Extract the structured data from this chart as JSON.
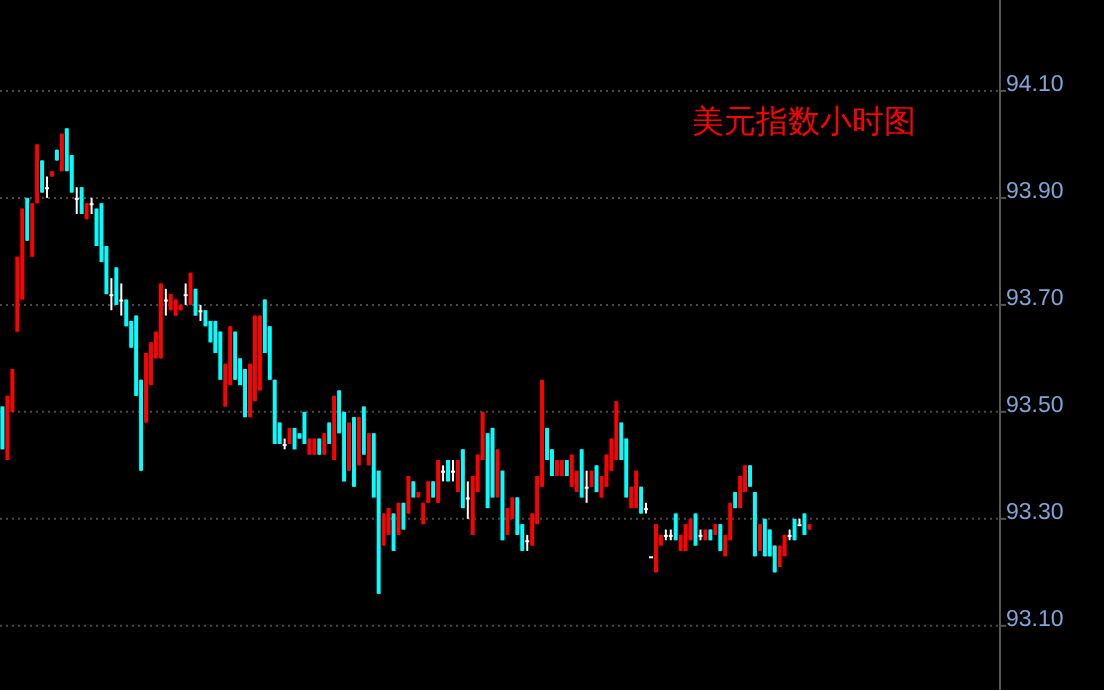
{
  "chart_data": {
    "type": "candlestick",
    "title": "美元指数小时图",
    "categories": [
      null,
      null,
      null,
      null,
      null,
      null,
      null,
      null,
      null,
      null,
      null,
      null,
      null,
      null,
      null,
      null,
      null,
      null,
      null,
      null,
      null,
      null,
      null,
      null,
      null,
      null,
      null,
      null,
      null,
      null,
      null,
      null,
      null,
      null,
      null,
      null,
      null,
      null,
      null,
      null,
      null,
      null,
      null,
      null,
      null,
      null,
      null,
      null,
      null,
      null,
      null,
      null,
      null,
      null,
      null,
      null,
      null,
      null,
      null,
      null,
      null,
      null,
      null,
      null,
      null,
      null,
      null,
      null,
      null,
      null,
      null,
      null,
      null,
      null,
      null,
      null,
      null,
      null,
      null,
      null,
      null,
      null,
      null,
      null,
      null,
      null,
      null,
      null,
      null,
      null,
      null,
      null,
      null,
      null,
      null,
      null,
      null,
      null,
      null,
      null,
      null,
      null,
      null,
      null,
      null,
      null,
      null,
      null,
      null,
      null,
      null,
      null,
      null,
      null,
      null,
      null,
      null,
      null,
      null,
      null,
      null,
      null,
      null,
      null,
      null,
      null,
      null,
      null,
      null,
      null,
      null,
      null,
      null,
      null,
      null,
      null,
      null,
      null,
      null,
      null,
      null,
      null,
      null,
      null,
      null,
      null,
      null,
      null,
      null,
      null,
      null,
      null,
      null,
      null,
      null,
      null,
      null,
      null,
      null,
      null,
      null,
      null,
      null,
      null,
      null,
      null,
      null,
      null,
      null,
      null,
      null,
      null,
      null,
      null,
      null,
      null,
      null,
      null,
      null,
      null,
      null,
      null,
      null,
      null,
      null,
      null,
      null,
      null,
      null,
      null,
      null,
      null,
      null,
      null,
      null,
      null,
      null,
      null,
      null,
      null,
      null,
      null
    ],
    "ohlc": [
      [
        93.51,
        93.51,
        93.43,
        93.43
      ],
      [
        93.41,
        93.53,
        93.41,
        93.53
      ],
      [
        93.5,
        93.58,
        93.5,
        93.58
      ],
      [
        93.65,
        93.79,
        93.65,
        93.79
      ],
      [
        93.71,
        93.88,
        93.71,
        93.88
      ],
      [
        93.9,
        93.9,
        93.82,
        93.82
      ],
      [
        93.79,
        93.89,
        93.79,
        93.89
      ],
      [
        93.89,
        94.0,
        93.89,
        94.0
      ],
      [
        93.97,
        93.97,
        93.91,
        93.91
      ],
      [
        93.92,
        93.94,
        93.9,
        93.92
      ],
      [
        93.94,
        93.95,
        93.94,
        93.95
      ],
      [
        93.99,
        93.99,
        93.97,
        93.97
      ],
      [
        93.95,
        94.02,
        93.95,
        94.02
      ],
      [
        94.03,
        94.03,
        93.95,
        93.95
      ],
      [
        93.98,
        93.98,
        93.91,
        93.91
      ],
      [
        93.9,
        93.92,
        93.87,
        93.9
      ],
      [
        93.92,
        93.92,
        93.87,
        93.87
      ],
      [
        93.86,
        93.89,
        93.86,
        93.89
      ],
      [
        93.89,
        93.9,
        93.87,
        93.89
      ],
      [
        93.88,
        93.88,
        93.81,
        93.81
      ],
      [
        93.89,
        93.89,
        93.78,
        93.78
      ],
      [
        93.81,
        93.81,
        93.72,
        93.72
      ],
      [
        93.72,
        93.75,
        93.69,
        93.72
      ],
      [
        93.77,
        93.77,
        93.7,
        93.7
      ],
      [
        93.71,
        93.74,
        93.68,
        93.71
      ],
      [
        93.71,
        93.71,
        93.66,
        93.66
      ],
      [
        93.67,
        93.67,
        93.62,
        93.62
      ],
      [
        93.68,
        93.68,
        93.53,
        93.53
      ],
      [
        93.56,
        93.56,
        93.39,
        93.39
      ],
      [
        93.48,
        93.61,
        93.48,
        93.61
      ],
      [
        93.55,
        93.63,
        93.55,
        93.63
      ],
      [
        93.6,
        93.65,
        93.6,
        93.65
      ],
      [
        93.6,
        93.74,
        93.6,
        93.74
      ],
      [
        93.71,
        93.73,
        93.68,
        93.71
      ],
      [
        93.69,
        93.72,
        93.69,
        93.72
      ],
      [
        93.68,
        93.71,
        93.68,
        93.71
      ],
      [
        93.69,
        93.7,
        93.69,
        93.7
      ],
      [
        93.72,
        93.74,
        93.7,
        93.72
      ],
      [
        93.7,
        93.76,
        93.7,
        93.76
      ],
      [
        93.73,
        93.73,
        93.68,
        93.68
      ],
      [
        93.69,
        93.7,
        93.67,
        93.69
      ],
      [
        93.69,
        93.69,
        93.66,
        93.66
      ],
      [
        93.67,
        93.67,
        93.63,
        93.63
      ],
      [
        93.67,
        93.67,
        93.61,
        93.61
      ],
      [
        93.65,
        93.65,
        93.56,
        93.56
      ],
      [
        93.51,
        93.59,
        93.51,
        93.59
      ],
      [
        93.55,
        93.66,
        93.55,
        93.66
      ],
      [
        93.65,
        93.65,
        93.56,
        93.56
      ],
      [
        93.6,
        93.6,
        93.55,
        93.55
      ],
      [
        93.58,
        93.58,
        93.49,
        93.49
      ],
      [
        93.49,
        93.59,
        93.49,
        93.59
      ],
      [
        93.52,
        93.68,
        93.52,
        93.68
      ],
      [
        93.54,
        93.68,
        93.54,
        93.68
      ],
      [
        93.71,
        93.71,
        93.61,
        93.61
      ],
      [
        93.66,
        93.66,
        93.56,
        93.56
      ],
      [
        93.56,
        93.56,
        93.44,
        93.44
      ],
      [
        93.48,
        93.48,
        93.44,
        93.44
      ],
      [
        93.44,
        93.45,
        93.43,
        93.44
      ],
      [
        93.44,
        93.47,
        93.44,
        93.47
      ],
      [
        93.47,
        93.47,
        93.43,
        93.43
      ],
      [
        93.46,
        93.46,
        93.45,
        93.45
      ],
      [
        93.5,
        93.5,
        93.44,
        93.44
      ],
      [
        93.42,
        93.45,
        93.42,
        93.45
      ],
      [
        93.42,
        93.45,
        93.42,
        93.45
      ],
      [
        93.45,
        93.45,
        93.42,
        93.42
      ],
      [
        93.42,
        93.46,
        93.42,
        93.46
      ],
      [
        93.48,
        93.48,
        93.44,
        93.44
      ],
      [
        93.41,
        93.53,
        93.41,
        93.53
      ],
      [
        93.54,
        93.54,
        93.46,
        93.46
      ],
      [
        93.5,
        93.5,
        93.37,
        93.37
      ],
      [
        93.39,
        93.48,
        93.39,
        93.48
      ],
      [
        93.49,
        93.49,
        93.36,
        93.36
      ],
      [
        93.4,
        93.49,
        93.4,
        93.49
      ],
      [
        93.51,
        93.51,
        93.42,
        93.42
      ],
      [
        93.4,
        93.46,
        93.4,
        93.46
      ],
      [
        93.46,
        93.46,
        93.34,
        93.34
      ],
      [
        93.39,
        93.39,
        93.16,
        93.16
      ],
      [
        93.25,
        93.31,
        93.25,
        93.31
      ],
      [
        93.27,
        93.32,
        93.27,
        93.32
      ],
      [
        93.31,
        93.31,
        93.24,
        93.24
      ],
      [
        93.27,
        93.33,
        93.27,
        93.33
      ],
      [
        93.33,
        93.33,
        93.28,
        93.28
      ],
      [
        93.31,
        93.38,
        93.31,
        93.38
      ],
      [
        93.37,
        93.37,
        93.34,
        93.34
      ],
      [
        93.34,
        93.35,
        93.34,
        93.35
      ],
      [
        93.29,
        93.33,
        93.29,
        93.33
      ],
      [
        93.33,
        93.37,
        93.33,
        93.37
      ],
      [
        93.37,
        93.37,
        93.34,
        93.34
      ],
      [
        93.33,
        93.41,
        93.33,
        93.41
      ],
      [
        93.39,
        93.4,
        93.37,
        93.39
      ],
      [
        93.41,
        93.41,
        93.37,
        93.37
      ],
      [
        93.39,
        93.41,
        93.37,
        93.39
      ],
      [
        93.35,
        93.41,
        93.35,
        93.41
      ],
      [
        93.43,
        93.43,
        93.32,
        93.32
      ],
      [
        93.34,
        93.37,
        93.3,
        93.34
      ],
      [
        93.27,
        93.38,
        93.27,
        93.38
      ],
      [
        93.35,
        93.42,
        93.35,
        93.42
      ],
      [
        93.41,
        93.5,
        93.41,
        93.5
      ],
      [
        93.46,
        93.46,
        93.32,
        93.32
      ],
      [
        93.47,
        93.47,
        93.34,
        93.34
      ],
      [
        93.34,
        93.43,
        93.34,
        93.43
      ],
      [
        93.39,
        93.39,
        93.26,
        93.26
      ],
      [
        93.27,
        93.32,
        93.27,
        93.32
      ],
      [
        93.3,
        93.34,
        93.3,
        93.34
      ],
      [
        93.34,
        93.34,
        93.27,
        93.27
      ],
      [
        93.29,
        93.29,
        93.24,
        93.24
      ],
      [
        93.26,
        93.27,
        93.24,
        93.26
      ],
      [
        93.25,
        93.31,
        93.25,
        93.31
      ],
      [
        93.29,
        93.38,
        93.29,
        93.38
      ],
      [
        93.36,
        93.56,
        93.36,
        93.56
      ],
      [
        93.47,
        93.47,
        93.41,
        93.41
      ],
      [
        93.43,
        93.43,
        93.38,
        93.38
      ],
      [
        93.38,
        93.41,
        93.38,
        93.41
      ],
      [
        93.38,
        93.41,
        93.38,
        93.41
      ],
      [
        93.41,
        93.41,
        93.38,
        93.38
      ],
      [
        93.36,
        93.42,
        93.36,
        93.42
      ],
      [
        93.35,
        93.39,
        93.35,
        93.39
      ],
      [
        93.43,
        93.43,
        93.34,
        93.34
      ],
      [
        93.36,
        93.39,
        93.33,
        93.36
      ],
      [
        93.36,
        93.39,
        93.36,
        93.39
      ],
      [
        93.4,
        93.4,
        93.35,
        93.35
      ],
      [
        93.34,
        93.38,
        93.34,
        93.38
      ],
      [
        93.36,
        93.42,
        93.36,
        93.42
      ],
      [
        93.39,
        93.45,
        93.39,
        93.45
      ],
      [
        93.41,
        93.52,
        93.41,
        93.52
      ],
      [
        93.48,
        93.48,
        93.41,
        93.41
      ],
      [
        93.45,
        93.45,
        93.34,
        93.34
      ],
      [
        93.32,
        93.36,
        93.32,
        93.36
      ],
      [
        93.32,
        93.39,
        93.32,
        93.39
      ],
      [
        93.36,
        93.36,
        93.31,
        93.31
      ],
      [
        93.32,
        93.33,
        93.31,
        93.32
      ],
      [
        93.23,
        93.23,
        93.23,
        93.23
      ],
      [
        93.2,
        93.29,
        93.2,
        93.29
      ],
      [
        93.25,
        93.27,
        93.25,
        93.27
      ],
      [
        93.27,
        93.28,
        93.26,
        93.27
      ],
      [
        93.27,
        93.28,
        93.26,
        93.27
      ],
      [
        93.31,
        93.31,
        93.26,
        93.26
      ],
      [
        93.24,
        93.27,
        93.24,
        93.27
      ],
      [
        93.24,
        93.29,
        93.24,
        93.29
      ],
      [
        93.26,
        93.3,
        93.26,
        93.3
      ],
      [
        93.31,
        93.31,
        93.25,
        93.25
      ],
      [
        93.27,
        93.28,
        93.26,
        93.27
      ],
      [
        93.26,
        93.28,
        93.26,
        93.28
      ],
      [
        93.28,
        93.28,
        93.26,
        93.26
      ],
      [
        93.27,
        93.29,
        93.27,
        93.29
      ],
      [
        93.29,
        93.29,
        93.24,
        93.24
      ],
      [
        93.23,
        93.27,
        93.23,
        93.27
      ],
      [
        93.26,
        93.33,
        93.26,
        93.33
      ],
      [
        93.35,
        93.35,
        93.32,
        93.32
      ],
      [
        93.32,
        93.38,
        93.32,
        93.38
      ],
      [
        93.35,
        93.4,
        93.35,
        93.4
      ],
      [
        93.4,
        93.4,
        93.36,
        93.36
      ],
      [
        93.35,
        93.35,
        93.23,
        93.23
      ],
      [
        93.24,
        93.29,
        93.24,
        93.29
      ],
      [
        93.3,
        93.3,
        93.23,
        93.23
      ],
      [
        93.28,
        93.28,
        93.23,
        93.23
      ],
      [
        93.25,
        93.25,
        93.2,
        93.2
      ],
      [
        93.21,
        93.25,
        93.21,
        93.25
      ],
      [
        93.23,
        93.27,
        93.23,
        93.27
      ],
      [
        93.27,
        93.28,
        93.26,
        93.27
      ],
      [
        93.3,
        93.3,
        93.26,
        93.26
      ],
      [
        93.29,
        93.3,
        93.29,
        93.29
      ],
      [
        93.31,
        93.31,
        93.27,
        93.27
      ],
      [
        93.28,
        93.29,
        93.28,
        93.29
      ],
      null,
      null,
      null,
      null,
      null,
      null,
      null,
      null,
      null,
      null,
      null,
      null,
      null,
      null,
      null,
      null,
      null,
      null,
      null,
      null,
      null,
      null,
      null,
      null,
      null,
      null,
      null,
      null,
      null,
      null,
      null,
      null,
      null,
      null,
      null,
      null,
      null,
      null
    ],
    "colors": [
      "#00ffff",
      "#ff0000",
      "#ff0000",
      "#ff0000",
      "#ff0000",
      "#00ffff",
      "#ff0000",
      "#ff0000",
      "#00ffff",
      "#ffffff",
      "#ff0000",
      "#00ffff",
      "#ff0000",
      "#00ffff",
      "#00ffff",
      "#ffffff",
      "#00ffff",
      "#ff0000",
      "#ffffff",
      "#00ffff",
      "#00ffff",
      "#00ffff",
      "#ffffff",
      "#00ffff",
      "#ffffff",
      "#00ffff",
      "#00ffff",
      "#00ffff",
      "#00ffff",
      "#ff0000",
      "#ff0000",
      "#ff0000",
      "#ff0000",
      "#ffffff",
      "#ff0000",
      "#ff0000",
      "#ff0000",
      "#ffffff",
      "#ff0000",
      "#00ffff",
      "#ffffff",
      "#00ffff",
      "#00ffff",
      "#00ffff",
      "#00ffff",
      "#ff0000",
      "#ff0000",
      "#00ffff",
      "#00ffff",
      "#00ffff",
      "#ff0000",
      "#ff0000",
      "#ff0000",
      "#00ffff",
      "#00ffff",
      "#00ffff",
      "#00ffff",
      "#ffffff",
      "#ff0000",
      "#00ffff",
      "#00ffff",
      "#00ffff",
      "#ff0000",
      "#ff0000",
      "#00ffff",
      "#ff0000",
      "#00ffff",
      "#ff0000",
      "#00ffff",
      "#00ffff",
      "#ff0000",
      "#00ffff",
      "#ff0000",
      "#00ffff",
      "#ff0000",
      "#00ffff",
      "#00ffff",
      "#ff0000",
      "#ff0000",
      "#00ffff",
      "#ff0000",
      "#00ffff",
      "#ff0000",
      "#00ffff",
      "#ff0000",
      "#ff0000",
      "#ff0000",
      "#00ffff",
      "#ff0000",
      "#ffffff",
      "#00ffff",
      "#ffffff",
      "#ff0000",
      "#00ffff",
      "#ffffff",
      "#ff0000",
      "#ff0000",
      "#ff0000",
      "#00ffff",
      "#00ffff",
      "#ff0000",
      "#00ffff",
      "#ff0000",
      "#ff0000",
      "#00ffff",
      "#00ffff",
      "#ffffff",
      "#ff0000",
      "#ff0000",
      "#ff0000",
      "#00ffff",
      "#00ffff",
      "#ff0000",
      "#ff0000",
      "#00ffff",
      "#ff0000",
      "#ff0000",
      "#00ffff",
      "#ffffff",
      "#ff0000",
      "#00ffff",
      "#ff0000",
      "#ff0000",
      "#ff0000",
      "#ff0000",
      "#00ffff",
      "#00ffff",
      "#ff0000",
      "#ff0000",
      "#00ffff",
      "#ffffff",
      "#ffffff",
      "#ff0000",
      "#ff0000",
      "#ffffff",
      "#ffffff",
      "#00ffff",
      "#ff0000",
      "#ff0000",
      "#ff0000",
      "#00ffff",
      "#ffffff",
      "#ff0000",
      "#00ffff",
      "#ff0000",
      "#00ffff",
      "#ff0000",
      "#ff0000",
      "#00ffff",
      "#ff0000",
      "#ff0000",
      "#00ffff",
      "#00ffff",
      "#ff0000",
      "#00ffff",
      "#00ffff",
      "#00ffff",
      "#ff0000",
      "#ff0000",
      "#ffffff",
      "#00ffff",
      "#ffffff",
      "#00ffff",
      "#ff0000",
      null,
      null,
      null,
      null,
      null,
      null,
      null,
      null,
      null,
      null,
      null,
      null,
      null,
      null,
      null,
      null,
      null,
      null,
      null,
      null,
      null,
      null,
      null,
      null,
      null,
      null,
      null,
      null,
      null,
      null,
      null,
      null,
      null,
      null,
      null,
      null,
      null,
      null
    ],
    "ylim": [
      92.98,
      94.27
    ],
    "yticks": [
      {
        "value": 93.1,
        "label": "93.10"
      },
      {
        "value": 93.3,
        "label": "93.30"
      },
      {
        "value": 93.5,
        "label": "93.50"
      },
      {
        "value": 93.7,
        "label": "93.70"
      },
      {
        "value": 93.9,
        "label": "93.90"
      },
      {
        "value": 94.1,
        "label": "94.10"
      }
    ],
    "grid": "y",
    "tick_labels": "y"
  }
}
